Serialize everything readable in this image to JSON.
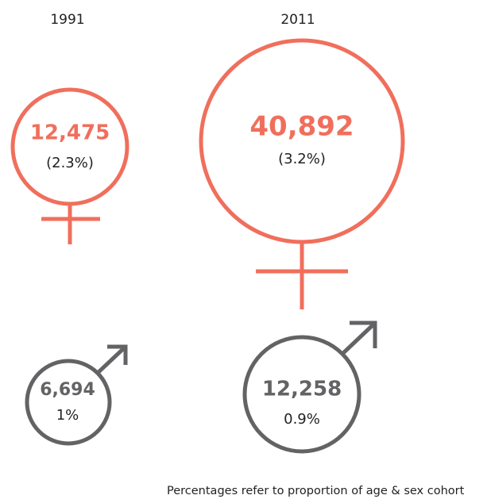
{
  "columns": [
    {
      "year": "1991",
      "female": {
        "count": "12,475",
        "share": "(2.3%)"
      },
      "male": {
        "count": "6,694",
        "share": "1%"
      }
    },
    {
      "year": "2011",
      "female": {
        "count": "40,892",
        "share": "(3.2%)"
      },
      "male": {
        "count": "12,258",
        "share": "0.9%"
      }
    }
  ],
  "note": "Percentages refer to proportion of age & sex cohort"
}
